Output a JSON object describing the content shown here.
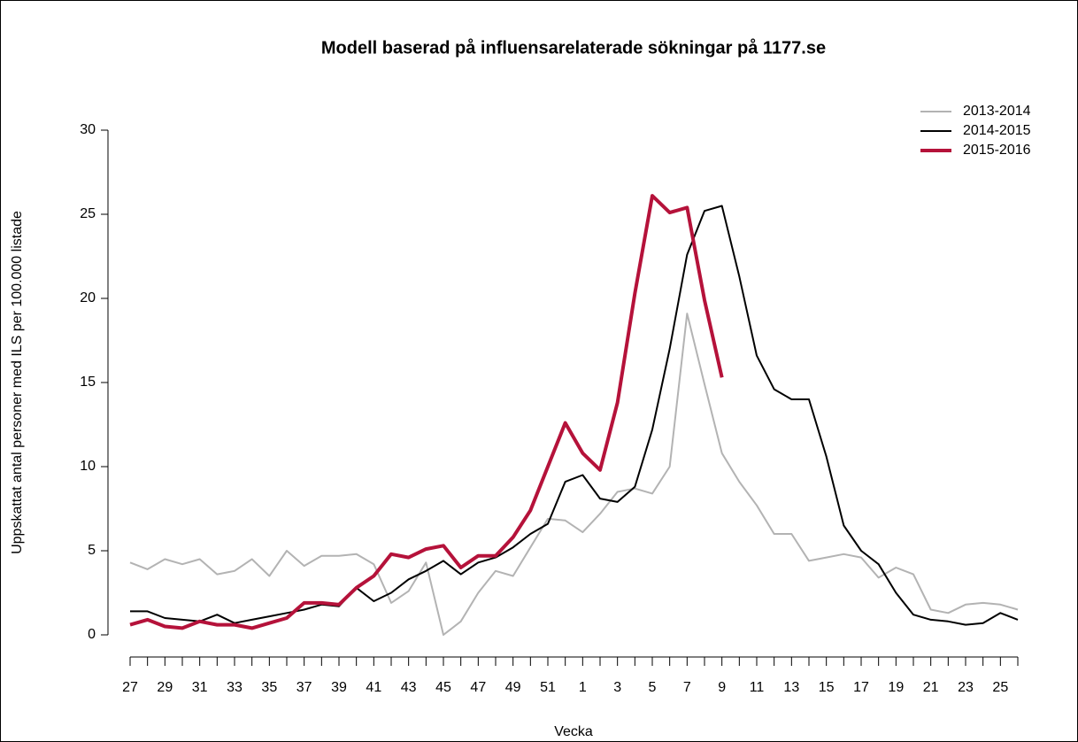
{
  "chart_data": {
    "type": "line",
    "title": "Modell baserad på influensarelaterade sökningar på 1177.se",
    "x_label": "Vecka",
    "y_label": "Uppskattat antal personer med ILS per 100.000 listade",
    "categories": [
      "27",
      null,
      "29",
      null,
      "31",
      null,
      "33",
      null,
      "35",
      null,
      "37",
      null,
      "39",
      null,
      "41",
      null,
      "43",
      null,
      "45",
      null,
      "47",
      null,
      "49",
      null,
      "51",
      null,
      "1",
      null,
      "3",
      null,
      "5",
      null,
      "7",
      null,
      "9",
      null,
      "11",
      null,
      "13",
      null,
      "15",
      null,
      "17",
      null,
      "19",
      null,
      "21",
      null,
      "23",
      null,
      "25",
      null
    ],
    "series": [
      {
        "name": "2013-2014",
        "color": "#b3b3b3",
        "width": 2,
        "values": [
          4.3,
          3.9,
          4.5,
          4.2,
          4.5,
          3.6,
          3.8,
          4.5,
          3.5,
          5.0,
          4.1,
          4.7,
          4.7,
          4.8,
          4.2,
          1.9,
          2.6,
          4.3,
          0,
          0.8,
          2.5,
          3.8,
          3.5,
          5.2,
          6.9,
          6.8,
          6.1,
          7.2,
          8.5,
          8.7,
          8.4,
          10.0,
          19.1,
          14.9,
          10.8,
          9.1,
          7.7,
          6.0,
          6.0,
          4.4,
          4.6,
          4.8,
          4.6,
          3.4,
          4.0,
          3.6,
          1.5,
          1.3,
          1.8,
          1.9,
          1.8,
          1.5
        ]
      },
      {
        "name": "2014-2015",
        "color": "#000000",
        "width": 2,
        "values": [
          1.4,
          1.4,
          1.0,
          0.9,
          0.8,
          1.2,
          0.7,
          0.9,
          1.1,
          1.3,
          1.5,
          1.8,
          1.7,
          2.8,
          2.0,
          2.5,
          3.3,
          3.8,
          4.4,
          3.6,
          4.3,
          4.6,
          5.2,
          6.0,
          6.6,
          9.1,
          9.5,
          8.1,
          7.9,
          8.8,
          12.2,
          17.0,
          22.6,
          25.2,
          25.5,
          21.3,
          16.6,
          14.6,
          14.0,
          14.0,
          10.6,
          6.5,
          5.0,
          4.2,
          2.5,
          1.2,
          0.9,
          0.8,
          0.6,
          0.7,
          1.3,
          0.9
        ]
      },
      {
        "name": "2015-2016",
        "color": "#b5123a",
        "width": 4,
        "values": [
          0.6,
          0.9,
          0.5,
          0.4,
          0.8,
          0.6,
          0.6,
          0.4,
          0.7,
          1.0,
          1.9,
          1.9,
          1.8,
          2.8,
          3.5,
          4.8,
          4.6,
          5.1,
          5.3,
          4.0,
          4.7,
          4.7,
          5.8,
          7.4,
          10.0,
          12.6,
          10.8,
          9.8,
          13.8,
          20.3,
          26.1,
          25.1,
          25.4,
          19.9,
          15.3,
          null,
          null,
          null,
          null,
          null,
          null,
          null,
          null,
          null,
          null,
          null,
          null,
          null,
          null,
          null,
          null,
          null
        ]
      }
    ],
    "ylim": [
      0,
      30
    ],
    "yticks": [
      0,
      5,
      10,
      15,
      20,
      25,
      30
    ],
    "grid": false,
    "legend": "top-right"
  }
}
